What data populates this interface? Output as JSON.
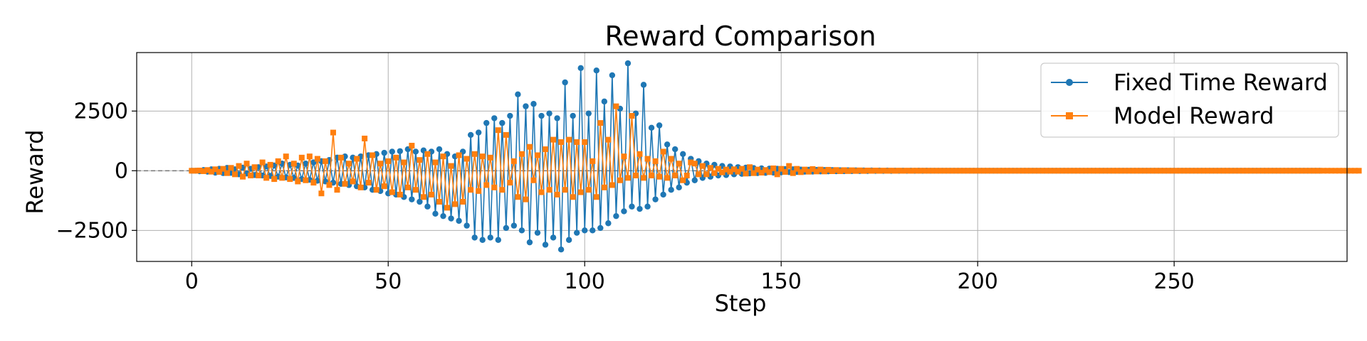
{
  "chart_data": {
    "type": "line",
    "title": "Reward Comparison",
    "xlabel": "Step",
    "ylabel": "Reward",
    "xlim": [
      -14,
      294
    ],
    "ylim": [
      -3800,
      4950
    ],
    "xticks": [
      0,
      50,
      100,
      150,
      200,
      250
    ],
    "yticks": [
      -2500,
      0,
      2500
    ],
    "ytick_labels": [
      "−2500",
      "0",
      "2500"
    ],
    "grid": true,
    "legend_position": "top-right",
    "zero_reference_line": true,
    "x_start": 0,
    "series": [
      {
        "name": "Fixed Time Reward",
        "color": "#1f77b4",
        "marker": "circle",
        "values": [
          0,
          0,
          -20,
          30,
          -40,
          60,
          -80,
          80,
          -100,
          120,
          -90,
          60,
          -150,
          130,
          -120,
          80,
          -180,
          150,
          -200,
          180,
          -220,
          220,
          -250,
          300,
          -280,
          250,
          -300,
          220,
          -350,
          300,
          -380,
          350,
          -420,
          400,
          -450,
          450,
          -500,
          550,
          -550,
          600,
          -600,
          550,
          -650,
          600,
          -700,
          650,
          -800,
          700,
          -850,
          750,
          -950,
          800,
          -1000,
          820,
          -1100,
          900,
          -1200,
          800,
          -1300,
          850,
          -1500,
          800,
          -1800,
          900,
          -1900,
          700,
          -2000,
          600,
          -2100,
          800,
          -2300,
          1500,
          -2800,
          1600,
          -2900,
          2000,
          -2800,
          2200,
          -2900,
          2000,
          -2400,
          2300,
          -2300,
          3200,
          -2500,
          2700,
          -3000,
          2800,
          -2600,
          2300,
          -3100,
          2400,
          -2800,
          2200,
          -3300,
          3700,
          -2900,
          2300,
          -2600,
          4300,
          -2500,
          2400,
          -2500,
          4200,
          -2400,
          2900,
          -2200,
          4000,
          -1900,
          2600,
          -1700,
          4500,
          -1500,
          2400,
          -1600,
          3600,
          -1500,
          1800,
          -1200,
          1900,
          -1000,
          1100,
          -800,
          900,
          -700,
          700,
          -500,
          500,
          -400,
          400,
          -300,
          300,
          -250,
          250,
          -200,
          200,
          -180,
          180,
          -150,
          150,
          -130,
          130,
          -110,
          110,
          -100,
          100,
          -90,
          90,
          -80,
          80,
          -70,
          70,
          -60,
          60,
          -50,
          50,
          -40,
          40,
          -35,
          35,
          -30,
          30,
          -25,
          25,
          -20,
          20,
          -18,
          18,
          -15,
          15,
          -12,
          12,
          -10,
          10,
          -8,
          8,
          -6,
          6,
          -5,
          5,
          -4,
          4,
          -3,
          3,
          -2,
          2,
          -2,
          2,
          -1,
          1,
          0,
          0,
          0,
          0,
          0,
          0,
          0,
          0,
          0,
          0,
          0,
          0,
          0,
          0,
          0,
          0,
          0,
          0,
          0,
          0,
          0,
          0,
          0,
          0,
          0,
          0,
          0,
          0,
          0,
          0,
          0,
          0,
          0,
          0,
          0,
          0,
          0,
          0,
          0,
          0,
          0,
          0,
          0,
          0,
          0,
          0,
          0,
          0,
          0,
          0,
          0,
          0,
          0,
          0,
          0,
          0,
          0,
          0,
          0,
          0,
          0,
          0,
          0,
          0,
          0,
          0,
          0,
          0,
          0,
          0,
          0,
          0,
          0,
          0,
          0,
          0,
          0,
          0,
          0,
          0,
          0,
          0,
          0,
          0,
          0,
          0,
          0,
          0,
          0,
          0,
          0,
          0,
          0,
          0,
          0,
          0,
          0,
          0
        ]
      },
      {
        "name": "Model Reward",
        "color": "#ff7f0e",
        "marker": "square",
        "values": [
          0,
          0,
          10,
          -20,
          30,
          -40,
          60,
          -50,
          80,
          -100,
          120,
          -150,
          200,
          -250,
          300,
          -200,
          150,
          -200,
          350,
          -300,
          250,
          -350,
          400,
          -300,
          600,
          -350,
          300,
          -450,
          550,
          -400,
          600,
          -500,
          500,
          -950,
          400,
          -600,
          1600,
          -800,
          550,
          -550,
          300,
          -450,
          500,
          -700,
          1350,
          -500,
          650,
          -800,
          300,
          -650,
          400,
          -900,
          550,
          -1000,
          350,
          -700,
          1050,
          -800,
          450,
          -1100,
          700,
          -1000,
          350,
          -1300,
          600,
          -1550,
          200,
          -1400,
          650,
          -1300,
          500,
          -800,
          700,
          -850,
          600,
          -600,
          550,
          -700,
          1700,
          -800,
          1500,
          -500,
          400,
          -1100,
          700,
          -1200,
          1000,
          -400,
          650,
          -900,
          900,
          -800,
          1300,
          -1000,
          1200,
          -800,
          1300,
          -1100,
          1200,
          -900,
          1200,
          -800,
          400,
          -1100,
          2000,
          -700,
          1300,
          -600,
          2700,
          -400,
          600,
          -300,
          2300,
          -200,
          700,
          -300,
          500,
          -200,
          400,
          -250,
          800,
          -300,
          500,
          -200,
          300,
          -400,
          -200,
          350,
          300,
          -150,
          200,
          -150,
          120,
          -100,
          80,
          -70,
          50,
          -40,
          60,
          -40,
          80,
          -120,
          150,
          -100,
          50,
          -80,
          30,
          -60,
          100,
          -150,
          80,
          -50,
          200,
          -100,
          80,
          -60,
          50,
          -40,
          70,
          -30,
          50,
          -30,
          40,
          -20,
          30,
          -20,
          25,
          -15,
          20,
          -10,
          15,
          -10,
          10,
          -5,
          8,
          -5,
          6,
          -4,
          5,
          -3,
          4,
          -2,
          3,
          -2,
          2,
          -1,
          2,
          -1,
          1,
          0,
          0,
          0,
          0,
          0,
          0,
          0,
          0,
          0,
          0,
          0,
          0,
          0,
          0,
          0,
          0,
          0,
          0,
          0,
          0,
          0,
          0,
          0,
          0,
          0,
          0,
          0,
          0,
          0,
          0,
          0,
          0,
          0,
          0,
          0,
          0,
          0,
          0,
          0,
          0,
          0,
          0,
          0,
          0,
          0,
          0,
          0,
          0,
          0,
          0,
          0,
          0,
          0,
          0,
          0,
          0,
          0,
          0,
          0,
          0,
          0,
          0,
          0,
          0,
          0,
          0,
          0,
          0,
          0,
          0,
          0,
          0,
          0,
          0,
          0,
          0,
          0,
          0,
          0,
          0,
          0,
          0,
          0,
          0,
          0,
          0,
          0,
          0,
          0,
          0,
          0,
          0,
          0,
          0,
          0,
          0,
          0,
          0,
          0,
          0,
          0,
          0,
          0,
          0,
          0,
          0,
          0,
          0,
          0
        ]
      }
    ]
  }
}
